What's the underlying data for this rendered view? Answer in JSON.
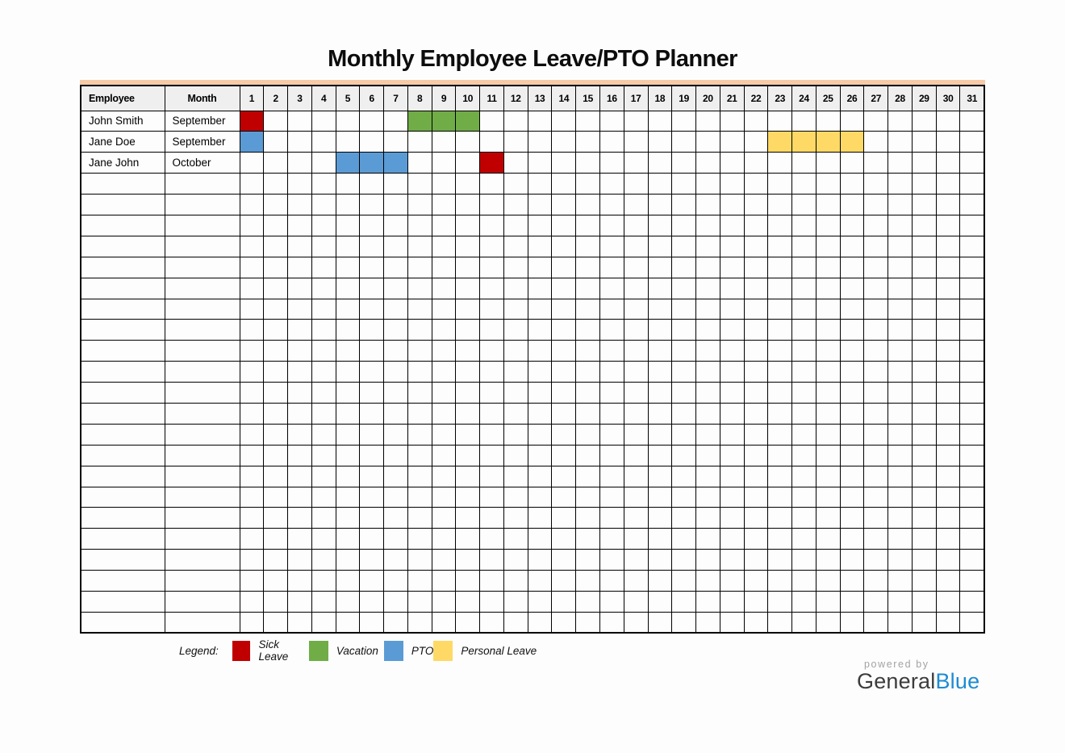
{
  "title": "Monthly Employee Leave/PTO Planner",
  "colors": {
    "sick_leave": "#C00000",
    "vacation": "#70AD47",
    "pto": "#5B9BD5",
    "personal_leave": "#FFD966",
    "accent_bar": "#F7CAA8",
    "header_bg": "#EFEFEF",
    "border": "#000000",
    "logo_blue": "#1E8BD1",
    "logo_dark": "#3C3C3C",
    "powered_gray": "#A3A3A3"
  },
  "table": {
    "columns": [
      "Employee",
      "Month"
    ],
    "day_numbers": [
      "1",
      "2",
      "3",
      "4",
      "5",
      "6",
      "7",
      "8",
      "9",
      "10",
      "11",
      "12",
      "13",
      "14",
      "15",
      "16",
      "17",
      "18",
      "19",
      "20",
      "21",
      "22",
      "23",
      "24",
      "25",
      "26",
      "27",
      "28",
      "29",
      "30",
      "31"
    ],
    "empty_row_count": 22,
    "entries": [
      {
        "employee": "John Smith",
        "month": "September",
        "leaves": [
          {
            "type": "sick_leave",
            "days": [
              1
            ]
          },
          {
            "type": "vacation",
            "days": [
              8,
              9,
              10
            ]
          }
        ]
      },
      {
        "employee": "Jane Doe",
        "month": "September",
        "leaves": [
          {
            "type": "pto",
            "days": [
              1
            ]
          },
          {
            "type": "personal_leave",
            "days": [
              23,
              24,
              25,
              26
            ]
          }
        ]
      },
      {
        "employee": "Jane John",
        "month": "October",
        "leaves": [
          {
            "type": "pto",
            "days": [
              5,
              6,
              7
            ]
          },
          {
            "type": "sick_leave",
            "days": [
              11
            ]
          }
        ]
      }
    ]
  },
  "legend": {
    "label": "Legend:",
    "items": [
      {
        "name": "Sick Leave",
        "color_key": "sick_leave"
      },
      {
        "name": "Vacation",
        "color_key": "vacation"
      },
      {
        "name": "PTO",
        "color_key": "pto"
      },
      {
        "name": "Personal Leave",
        "color_key": "personal_leave"
      }
    ]
  },
  "footer": {
    "powered_by": "powered by",
    "brand_general": "General",
    "brand_blue": "Blue"
  }
}
